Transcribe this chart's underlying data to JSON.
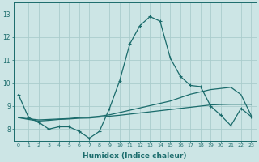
{
  "title": "",
  "xlabel": "Humidex (Indice chaleur)",
  "ylabel": "",
  "background_color": "#cce5e5",
  "grid_color": "#aacccc",
  "line_color": "#1a6b6b",
  "x_values": [
    0,
    1,
    2,
    3,
    4,
    5,
    6,
    7,
    8,
    9,
    10,
    11,
    12,
    13,
    14,
    15,
    16,
    17,
    18,
    19,
    20,
    21,
    22,
    23
  ],
  "line1": [
    9.5,
    8.5,
    8.3,
    8.0,
    8.1,
    8.1,
    7.9,
    7.6,
    7.9,
    8.9,
    10.1,
    11.7,
    12.5,
    12.9,
    12.7,
    11.1,
    10.3,
    9.9,
    9.85,
    9.0,
    8.6,
    8.15,
    8.9,
    8.55
  ],
  "line2": [
    8.5,
    8.45,
    8.4,
    8.42,
    8.44,
    8.46,
    8.5,
    8.52,
    8.56,
    8.62,
    8.72,
    8.82,
    8.92,
    9.02,
    9.12,
    9.22,
    9.37,
    9.52,
    9.62,
    9.72,
    9.77,
    9.82,
    9.5,
    8.6
  ],
  "line3": [
    8.5,
    8.42,
    8.35,
    8.38,
    8.42,
    8.44,
    8.47,
    8.48,
    8.52,
    8.56,
    8.6,
    8.65,
    8.7,
    8.75,
    8.8,
    8.85,
    8.9,
    8.95,
    9.0,
    9.05,
    9.07,
    9.08,
    9.08,
    9.08
  ],
  "ylim": [
    7.5,
    13.5
  ],
  "xlim": [
    -0.5,
    23.5
  ],
  "yticks": [
    8,
    9,
    10,
    11,
    12,
    13
  ],
  "xticks": [
    0,
    1,
    2,
    3,
    4,
    5,
    6,
    7,
    8,
    9,
    10,
    11,
    12,
    13,
    14,
    15,
    16,
    17,
    18,
    19,
    20,
    21,
    22,
    23
  ]
}
